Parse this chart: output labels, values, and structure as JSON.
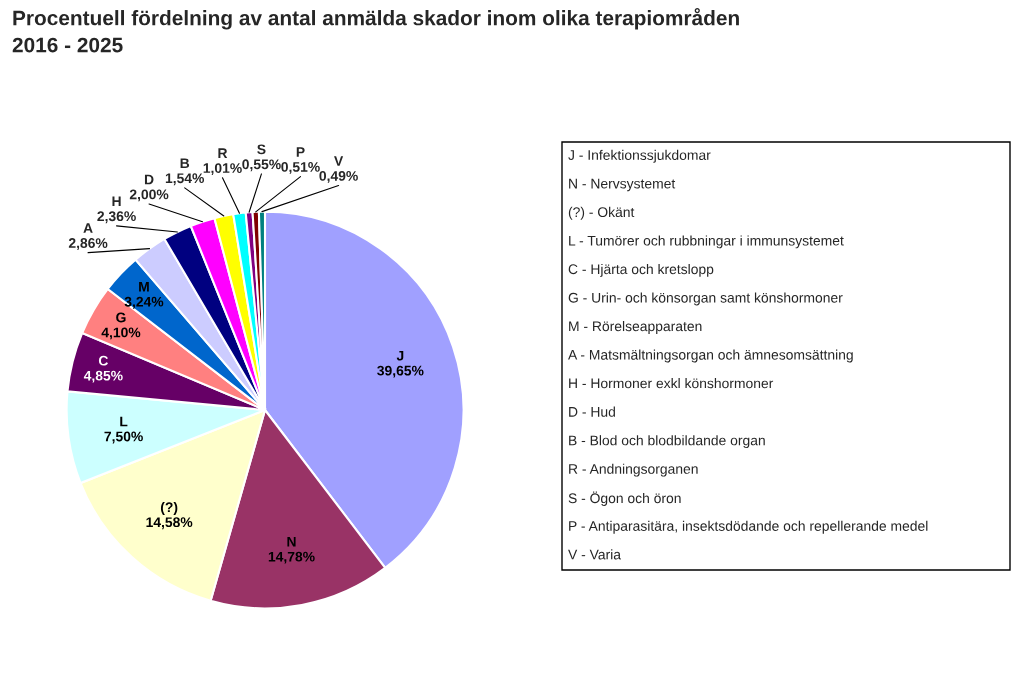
{
  "chart_data": {
    "type": "pie",
    "title": "Procentuell fördelning av antal anmälda skador inom olika terapiområden\n2016 - 2025",
    "categories": [
      "J",
      "N",
      "(?)",
      "L",
      "C",
      "G",
      "M",
      "A",
      "H",
      "D",
      "B",
      "R",
      "S",
      "P",
      "V"
    ],
    "values": [
      39.65,
      14.78,
      14.58,
      7.5,
      4.85,
      4.1,
      3.24,
      2.86,
      2.36,
      2.0,
      1.54,
      1.01,
      0.55,
      0.51,
      0.49
    ],
    "value_labels": [
      "39,65%",
      "14,78%",
      "14,58%",
      "7,50%",
      "4,85%",
      "4,10%",
      "3,24%",
      "2,86%",
      "2,36%",
      "2,00%",
      "1,54%",
      "1,01%",
      "0,55%",
      "0,51%",
      "0,49%"
    ],
    "colors": [
      "#a0a0ff",
      "#993366",
      "#ffffcc",
      "#ccffff",
      "#660066",
      "#ff8080",
      "#0066cc",
      "#ccccff",
      "#000080",
      "#ff00ff",
      "#ffff00",
      "#00ffff",
      "#800080",
      "#800000",
      "#008080"
    ],
    "annotations": [
      "J - Infektionssjukdomar",
      "N - Nervsystemet",
      "(?) - Okänt",
      "L - Tumörer och rubbningar i immunsystemet",
      "C - Hjärta och kretslopp",
      "G - Urin- och könsorgan samt könshormoner",
      "M - Rörelseapparaten",
      "A - Matsmältningsorgan och ämnesomsättning",
      "H - Hormoner exkl könshormoner",
      "D - Hud",
      "B - Blod och blodbildande organ",
      "R - Andningsorganen",
      "S - Ögon och öron",
      "P - Antiparasitära, insektsdödande och repellerande medel",
      "V - Varia"
    ]
  }
}
